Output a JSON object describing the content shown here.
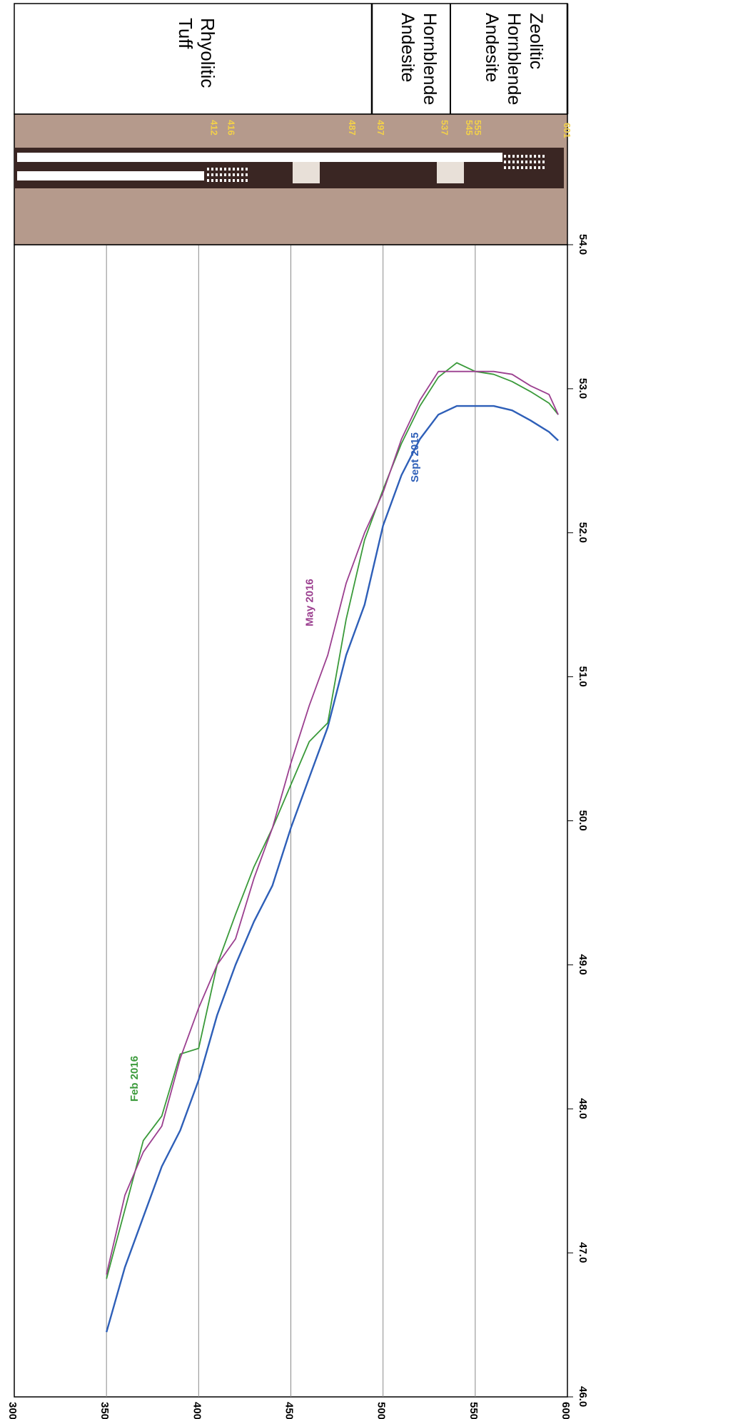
{
  "chart_data": {
    "type": "line",
    "orientation": "rotated-90-clockwise",
    "x_axis": {
      "ticks": [
        "300",
        "350",
        "400",
        "450",
        "500",
        "550",
        "600"
      ],
      "range": [
        300,
        600
      ]
    },
    "y_axis": {
      "ticks": [
        "46.0",
        "47.0",
        "48.0",
        "49.0",
        "50.0",
        "51.0",
        "52.0",
        "53.0",
        "54.0"
      ],
      "range": [
        46,
        54
      ]
    },
    "grid": true,
    "series": [
      {
        "name": "Sept 2015",
        "color": "#2e5fb8",
        "x": [
          350,
          360,
          370,
          380,
          390,
          400,
          410,
          420,
          430,
          440,
          450,
          460,
          470,
          480,
          490,
          500,
          510,
          520,
          530,
          540,
          550,
          560,
          570,
          580,
          590,
          595
        ],
        "y": [
          46.45,
          46.9,
          47.25,
          47.6,
          47.85,
          48.2,
          48.65,
          49.0,
          49.3,
          49.55,
          49.95,
          50.3,
          50.65,
          51.15,
          51.5,
          52.05,
          52.4,
          52.65,
          52.82,
          52.88,
          52.88,
          52.88,
          52.85,
          52.78,
          52.7,
          52.64
        ]
      },
      {
        "name": "Feb 2016",
        "color": "#3a9a3a",
        "x": [
          350,
          360,
          370,
          380,
          390,
          400,
          410,
          420,
          430,
          440,
          450,
          460,
          470,
          480,
          490,
          500,
          510,
          520,
          530,
          540,
          550,
          560,
          570,
          580,
          590,
          595
        ],
        "y": [
          46.82,
          47.3,
          47.78,
          47.95,
          48.38,
          48.42,
          49.0,
          49.35,
          49.68,
          49.95,
          50.25,
          50.55,
          50.68,
          51.4,
          51.95,
          52.3,
          52.62,
          52.88,
          53.08,
          53.18,
          53.12,
          53.1,
          53.05,
          52.98,
          52.9,
          52.82
        ]
      },
      {
        "name": "May 2016",
        "color": "#9b3f8f",
        "x": [
          350,
          360,
          370,
          380,
          390,
          400,
          410,
          420,
          430,
          440,
          450,
          460,
          470,
          480,
          490,
          500,
          510,
          520,
          530,
          540,
          550,
          560,
          570,
          580,
          590,
          595
        ],
        "y": [
          46.85,
          47.4,
          47.7,
          47.88,
          48.35,
          48.7,
          49.0,
          49.18,
          49.6,
          49.95,
          50.4,
          50.8,
          51.15,
          51.65,
          52.0,
          52.28,
          52.65,
          52.92,
          53.12,
          53.12,
          53.12,
          53.12,
          53.1,
          53.02,
          52.96,
          52.82
        ]
      }
    ],
    "series_labels": [
      {
        "text": "Feb 2016",
        "x": 367,
        "y": 48.05
      },
      {
        "text": "May 2016",
        "x": 462,
        "y": 51.35
      },
      {
        "text": "Sept 2015",
        "x": 519,
        "y": 52.35
      }
    ]
  },
  "lithology": {
    "units": [
      {
        "name": "Rhyolitic Tuff",
        "lines": [
          "Rhyolitic",
          "Tuff"
        ],
        "from": 300,
        "to": 520
      },
      {
        "name": "Hornblende Andesite",
        "lines": [
          "Hornblende",
          "Andesite"
        ],
        "from": 520,
        "to": 557
      },
      {
        "name": "Zeolitic Hornblende Andesite",
        "lines": [
          "Zeolitic",
          "Hornblende",
          "Andesite"
        ],
        "from": 557,
        "to": 605
      }
    ],
    "depth_marks": [
      "412",
      "416",
      "487",
      "497",
      "537",
      "545",
      "555",
      "601"
    ]
  },
  "colors": {
    "well_panel": "#b59a8c",
    "well_dark": "#3a2623",
    "depth_label": "#f2d04a",
    "grid": "#8a8a8a",
    "axis_text": "#000000"
  }
}
